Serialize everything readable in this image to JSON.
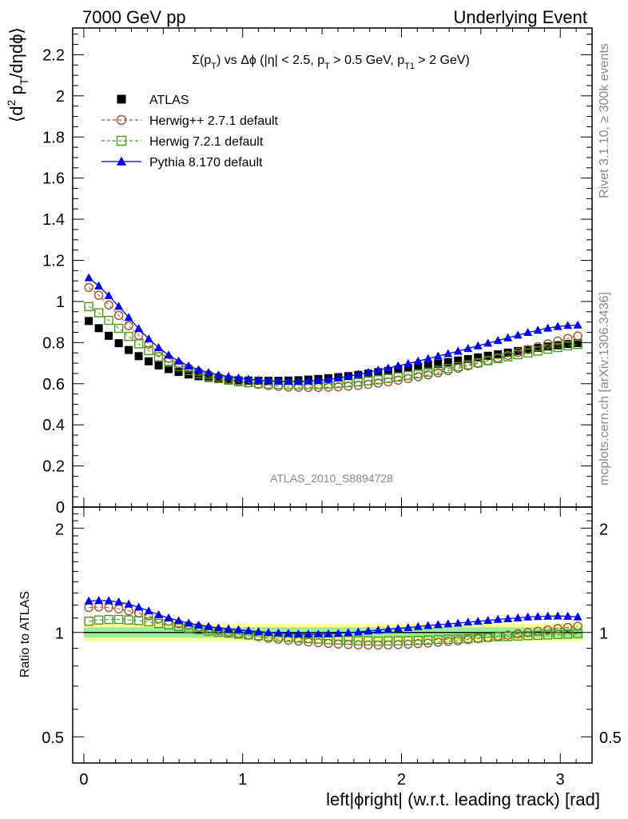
{
  "header": {
    "left": "7000 GeV pp",
    "right": "Underlying Event"
  },
  "side_labels": {
    "rivet": "Rivet 3.1.10, ≥ 300k events",
    "mcplots": "mcplots.cern.ch [arXiv:1306.3436]"
  },
  "chart_data": {
    "type": "scatter",
    "title": "Σ(p_T) vs Δϕ (|η| < 2.5, p_T > 0.5 GeV, p_T1 > 2 GeV)",
    "analysis_label": "ATLAS_2010_S8894728",
    "xlabel": "left|ϕright| (w.r.t. leading track) [rad]",
    "ylabel": "⟨d² p_T/dηdϕ⟩",
    "ratio_ylabel": "Ratio to ATLAS",
    "xlim": [
      -0.07,
      3.2
    ],
    "ylim": [
      0,
      2.33
    ],
    "ratio_ylim": [
      0.42,
      2.3
    ],
    "ratio_log": true,
    "x_ticks": [
      "0",
      "1",
      "2",
      "3"
    ],
    "y_ticks": [
      "0",
      "0.2",
      "0.4",
      "0.6",
      "0.8",
      "1",
      "1.2",
      "1.4",
      "1.6",
      "1.8",
      "2",
      "2.2"
    ],
    "ratio_ticks": [
      "0.5",
      "1",
      "2"
    ],
    "x": [
      0.0314,
      0.0942,
      0.1571,
      0.2199,
      0.2827,
      0.3456,
      0.4084,
      0.4712,
      0.5341,
      0.5969,
      0.6597,
      0.7226,
      0.7854,
      0.8482,
      0.9111,
      0.9739,
      1.0367,
      1.0996,
      1.1624,
      1.2252,
      1.2881,
      1.3509,
      1.4137,
      1.4765,
      1.5394,
      1.6022,
      1.665,
      1.7279,
      1.7907,
      1.8535,
      1.9164,
      1.9792,
      2.042,
      2.1049,
      2.1677,
      2.2305,
      2.2934,
      2.3562,
      2.419,
      2.4819,
      2.5447,
      2.6075,
      2.6704,
      2.7332,
      2.796,
      2.8588,
      2.9217,
      2.9845,
      3.0473,
      3.1102
    ],
    "series": [
      {
        "name": "ATLAS",
        "color": "#000000",
        "marker": "filled-square",
        "values": [
          0.905,
          0.87,
          0.833,
          0.797,
          0.764,
          0.734,
          0.709,
          0.689,
          0.671,
          0.657,
          0.645,
          0.636,
          0.629,
          0.624,
          0.62,
          0.617,
          0.615,
          0.614,
          0.614,
          0.614,
          0.615,
          0.617,
          0.62,
          0.623,
          0.627,
          0.632,
          0.637,
          0.643,
          0.649,
          0.656,
          0.662,
          0.669,
          0.676,
          0.683,
          0.69,
          0.697,
          0.705,
          0.713,
          0.72,
          0.728,
          0.736,
          0.743,
          0.751,
          0.759,
          0.766,
          0.774,
          0.781,
          0.787,
          0.793,
          0.798
        ]
      },
      {
        "name": "Herwig++ 2.7.1 default",
        "color": "#a0522d",
        "marker": "open-circle",
        "values": [
          1.068,
          1.03,
          0.983,
          0.932,
          0.882,
          0.835,
          0.792,
          0.755,
          0.723,
          0.697,
          0.676,
          0.658,
          0.644,
          0.632,
          0.621,
          0.612,
          0.604,
          0.597,
          0.591,
          0.587,
          0.584,
          0.583,
          0.582,
          0.582,
          0.583,
          0.585,
          0.588,
          0.592,
          0.597,
          0.603,
          0.609,
          0.617,
          0.625,
          0.634,
          0.643,
          0.653,
          0.664,
          0.675,
          0.687,
          0.699,
          0.712,
          0.725,
          0.738,
          0.752,
          0.766,
          0.78,
          0.794,
          0.808,
          0.82,
          0.832
        ]
      },
      {
        "name": "Herwig 7.2.1 default",
        "color": "#4a9a1a",
        "marker": "open-square",
        "values": [
          0.975,
          0.945,
          0.908,
          0.869,
          0.83,
          0.794,
          0.761,
          0.731,
          0.705,
          0.683,
          0.664,
          0.648,
          0.635,
          0.625,
          0.617,
          0.61,
          0.605,
          0.601,
          0.598,
          0.596,
          0.595,
          0.594,
          0.595,
          0.596,
          0.598,
          0.601,
          0.605,
          0.609,
          0.614,
          0.619,
          0.626,
          0.633,
          0.64,
          0.648,
          0.656,
          0.665,
          0.674,
          0.683,
          0.692,
          0.702,
          0.712,
          0.722,
          0.731,
          0.741,
          0.75,
          0.759,
          0.768,
          0.776,
          0.784,
          0.791
        ]
      },
      {
        "name": "Pythia 8.170 default",
        "color": "#0000ff",
        "marker": "filled-triangle",
        "values": [
          1.115,
          1.075,
          1.028,
          0.976,
          0.922,
          0.868,
          0.818,
          0.775,
          0.739,
          0.71,
          0.686,
          0.668,
          0.654,
          0.643,
          0.635,
          0.628,
          0.622,
          0.617,
          0.614,
          0.612,
          0.611,
          0.611,
          0.613,
          0.616,
          0.621,
          0.628,
          0.636,
          0.645,
          0.655,
          0.666,
          0.676,
          0.687,
          0.698,
          0.71,
          0.722,
          0.734,
          0.746,
          0.758,
          0.771,
          0.784,
          0.797,
          0.81,
          0.823,
          0.836,
          0.849,
          0.86,
          0.87,
          0.878,
          0.883,
          0.885
        ]
      }
    ]
  }
}
